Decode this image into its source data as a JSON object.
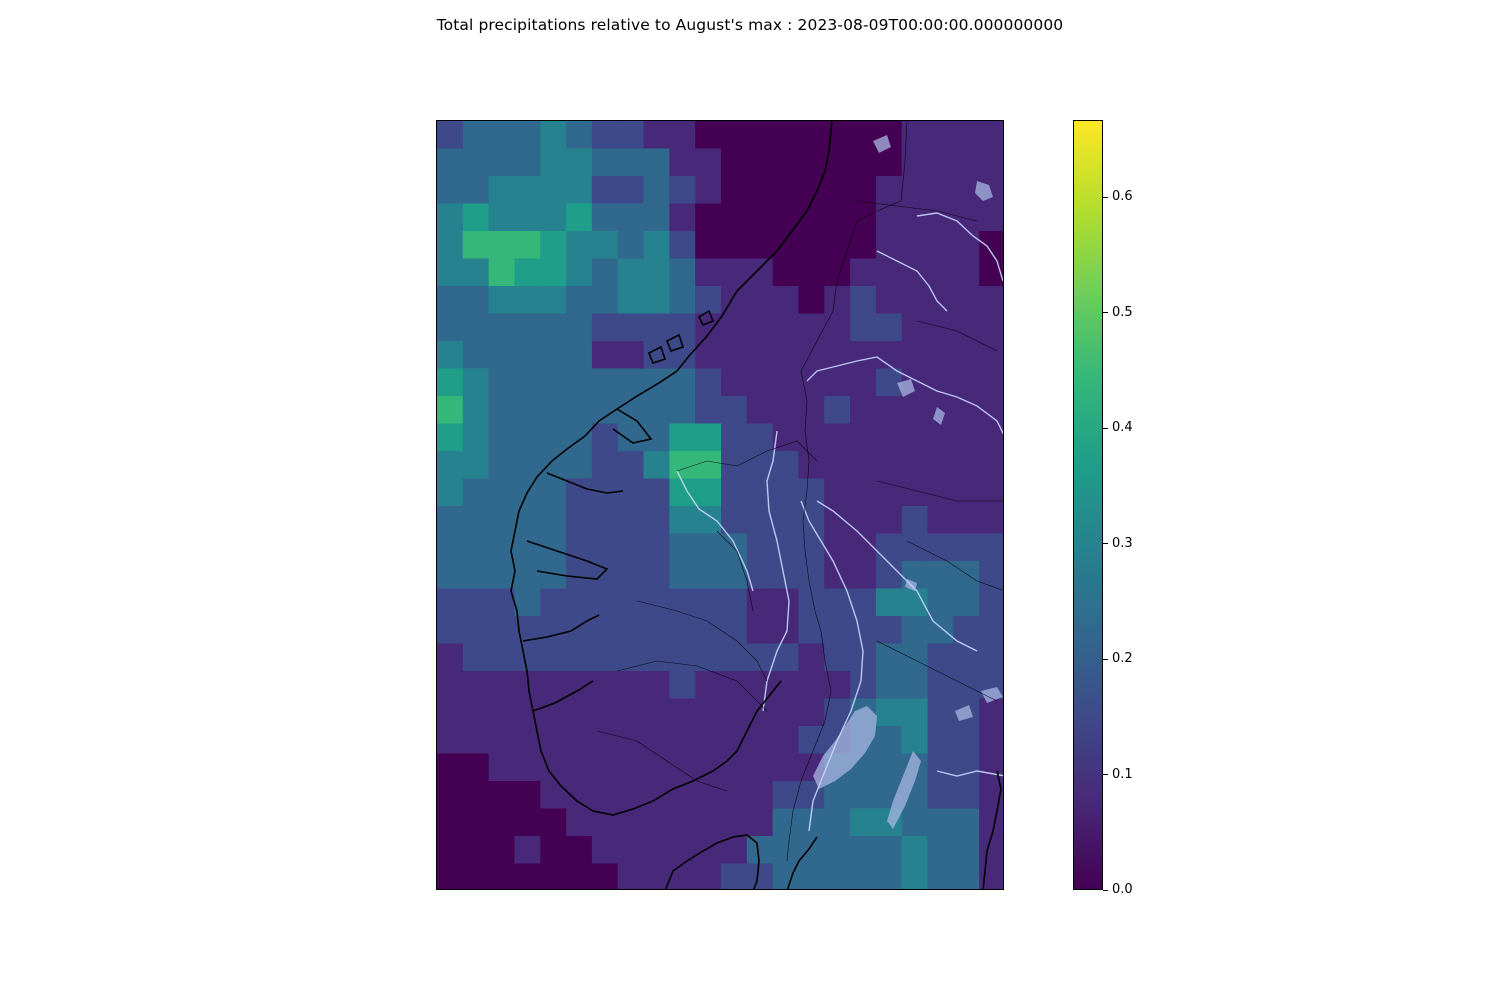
{
  "title": "Total precipitations relative to August's max : 2023-08-09T00:00:00.000000000",
  "colorbar": {
    "colormap": "viridis",
    "min": 0.0,
    "max": 0.667,
    "ticks": [
      "0.0",
      "0.1",
      "0.2",
      "0.3",
      "0.4",
      "0.5",
      "0.6"
    ],
    "tick_values": [
      0.0,
      0.1,
      0.2,
      0.3,
      0.4,
      0.5,
      0.6
    ],
    "stops": [
      "#440154",
      "#482878",
      "#3e4989",
      "#31688e",
      "#26828e",
      "#1f9e89",
      "#35b779",
      "#6ece58",
      "#b5de2b",
      "#fde725"
    ]
  },
  "map": {
    "region": "Southern Norway and western Sweden",
    "coastline_color": "#000000",
    "border_color": "#000000",
    "river_color": "#c6d6ff",
    "lake_color": "#a6b6e0",
    "precip_grid_rows": [
      "2333432211000000001111",
      "3333443331100000001111",
      "3344442232100000011111",
      "4544453331000000011111",
      "4666544342000000011110",
      "4465543443111000111110",
      "3344433443211101211111",
      "3333332222111111221111",
      "4333331122111111111111",
      "5433333333211111121111",
      "6433333333221112111111",
      "5433332335522111111111",
      "4433332246622211111111",
      "4333322225522221111111",
      "3333322224422221112111",
      "3333322223332221122222",
      "3333322223332221123332",
      "2223222222221122244332",
      "2222222222221122223322",
      "1222222222222212233222",
      "1111111112111111233222",
      "1111111111111112344221",
      "1111111111111122334221",
      "0011111111111113333221",
      "0000111111111223333221",
      "0000011111111333443331",
      "0001001111113333334331",
      "0000000111122333334331"
    ]
  }
}
